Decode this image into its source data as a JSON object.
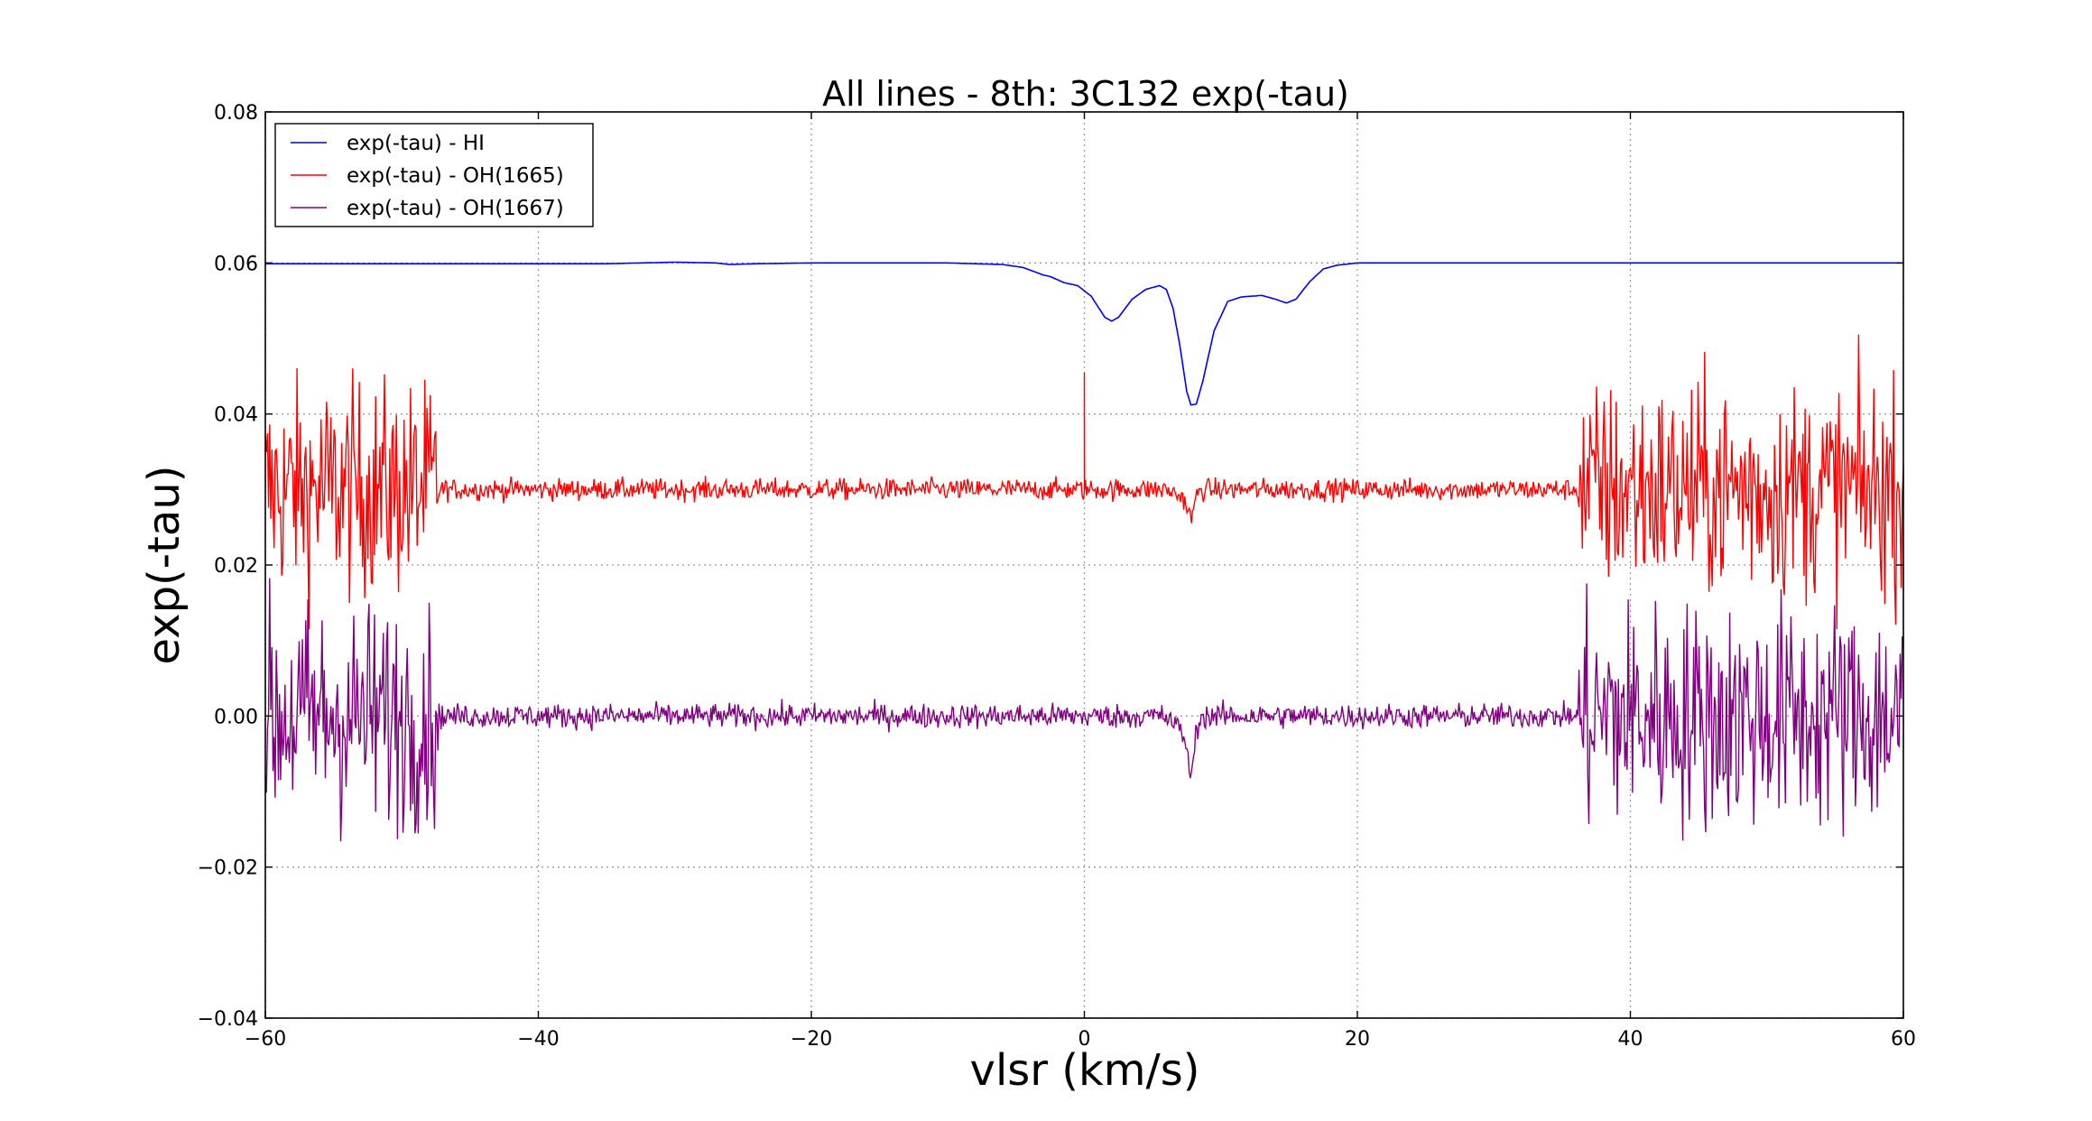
{
  "chart_data": {
    "type": "line",
    "title": "All lines - 8th: 3C132  exp(-tau)",
    "xlabel": "vlsr (km/s)",
    "ylabel": "exp(-tau)",
    "xlim": [
      -60,
      60
    ],
    "ylim": [
      -0.04,
      0.08
    ],
    "grid": true,
    "grid_style": "dotted",
    "legend_position": "upper-left",
    "x_ticks": [
      -60,
      -40,
      -20,
      0,
      20,
      40,
      60
    ],
    "x_tick_labels": [
      "−60",
      "−40",
      "−20",
      "0",
      "20",
      "40",
      "60"
    ],
    "y_ticks": [
      -0.04,
      -0.02,
      0.0,
      0.02,
      0.04,
      0.06,
      0.08
    ],
    "y_tick_labels": [
      "−0.04",
      "−0.02",
      "0.00",
      "0.02",
      "0.04",
      "0.06",
      "0.08"
    ],
    "noisy_region_limits": [
      -47.3,
      36.2
    ],
    "series": [
      {
        "name": "exp(-tau) - HI",
        "color": "#0000ff",
        "baseline": 0.06,
        "x": [
          -60,
          -35,
          -30,
          -27,
          -26,
          -24,
          -20,
          -10,
          -6,
          -4.5,
          -3,
          -2.5,
          -1.5,
          -0.5,
          0.5,
          1.5,
          2.0,
          2.5,
          3.5,
          4.5,
          5.5,
          6.0,
          6.5,
          7.0,
          7.5,
          7.8,
          8.2,
          8.7,
          9.5,
          10.5,
          11.5,
          13.0,
          14.0,
          14.8,
          15.5,
          16.5,
          17.5,
          18.5,
          20.0,
          30,
          60
        ],
        "y": [
          0.0599,
          0.0599,
          0.0601,
          0.06,
          0.0598,
          0.0599,
          0.06,
          0.06,
          0.0598,
          0.0594,
          0.0584,
          0.0582,
          0.0574,
          0.057,
          0.0556,
          0.0528,
          0.0523,
          0.0528,
          0.0552,
          0.0565,
          0.057,
          0.0565,
          0.054,
          0.049,
          0.043,
          0.0412,
          0.0413,
          0.0445,
          0.051,
          0.0549,
          0.0555,
          0.0557,
          0.0552,
          0.0547,
          0.0552,
          0.0575,
          0.0592,
          0.0597,
          0.06,
          0.06,
          0.06
        ]
      },
      {
        "name": "exp(-tau) - OH(1665)",
        "color": "#ff0000",
        "baseline": 0.03,
        "noise_inner": 0.0007,
        "noise_outer": 0.007,
        "spike_x": 0.0,
        "spike_y": 0.0455,
        "absorption_x": 7.8,
        "absorption_min": 0.0265
      },
      {
        "name": "exp(-tau) - OH(1667)",
        "color": "#800080",
        "baseline": 0.0,
        "noise_inner": 0.0008,
        "noise_outer": 0.0075,
        "absorption_x": 7.8,
        "absorption_min": -0.0072
      }
    ]
  }
}
